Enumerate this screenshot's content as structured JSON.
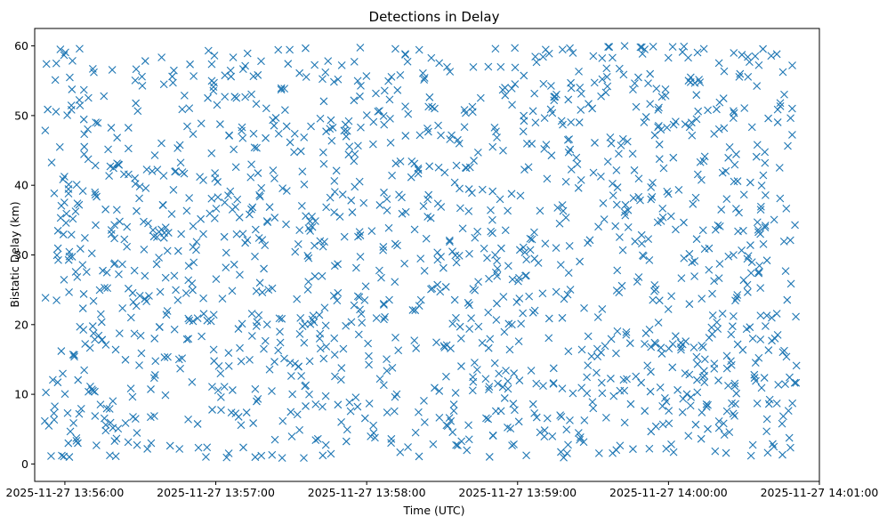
{
  "chart_data": {
    "type": "scatter",
    "title": "Detections in Delay",
    "xlabel": "Time (UTC)",
    "ylabel": "Bistatic Delay (km)",
    "x_range": [
      "2025-11-27 13:55:48",
      "2025-11-27 14:01:00"
    ],
    "ylim": [
      -2.5,
      62.5
    ],
    "x_ticks": [
      "2025-11-27 13:56:00",
      "2025-11-27 13:57:00",
      "2025-11-27 13:58:00",
      "2025-11-27 13:59:00",
      "2025-11-27 14:00:00",
      "2025-11-27 14:01:00"
    ],
    "y_ticks": [
      "0",
      "10",
      "20",
      "30",
      "40",
      "50",
      "60"
    ],
    "grid": false,
    "marker": "x",
    "series": [
      {
        "color": "#1f77b4",
        "x_start": "2025-11-27 13:55:52",
        "x_end": "2025-11-27 14:00:51",
        "y_min": 0.8,
        "y_max": 60,
        "point_count": 1500,
        "distribution": "uniform random across time and delay"
      }
    ]
  }
}
